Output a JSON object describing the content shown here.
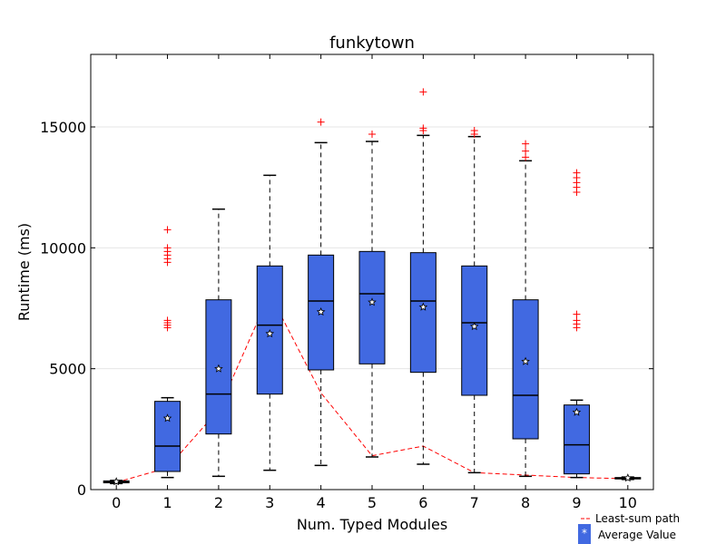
{
  "chart_data": {
    "type": "box",
    "title": "funkytown",
    "xlabel": "Num. Typed Modules",
    "ylabel": "Runtime (ms)",
    "xlim": [
      -0.5,
      10.5
    ],
    "ylim": [
      0,
      18000
    ],
    "yticks": [
      0,
      5000,
      10000,
      15000
    ],
    "ytick_labels": [
      "0",
      "5000",
      "10000",
      "15000"
    ],
    "grid": "horizontal",
    "colors": {
      "box": "#4169e1",
      "outlier": "#ff0000",
      "path": "#ff0000"
    },
    "boxes": [
      {
        "x": 0,
        "label": "0",
        "whislo": 250,
        "q1": 280,
        "med": 320,
        "q3": 360,
        "whishi": 380,
        "mean": 330,
        "outliers": []
      },
      {
        "x": 1,
        "label": "1",
        "whislo": 500,
        "q1": 750,
        "med": 1800,
        "q3": 3650,
        "whishi": 3800,
        "mean": 2950,
        "outliers": [
          6700,
          6800,
          6900,
          7000,
          9400,
          9550,
          9700,
          9850,
          10000,
          10750
        ]
      },
      {
        "x": 2,
        "label": "2",
        "whislo": 550,
        "q1": 2300,
        "med": 3950,
        "q3": 7850,
        "whishi": 11600,
        "mean": 5000,
        "outliers": []
      },
      {
        "x": 3,
        "label": "3",
        "whislo": 800,
        "q1": 3950,
        "med": 6800,
        "q3": 9250,
        "whishi": 13000,
        "mean": 6450,
        "outliers": []
      },
      {
        "x": 4,
        "label": "4",
        "whislo": 1000,
        "q1": 4950,
        "med": 7800,
        "q3": 9700,
        "whishi": 14350,
        "mean": 7350,
        "outliers": [
          15200
        ]
      },
      {
        "x": 5,
        "label": "5",
        "whislo": 1350,
        "q1": 5200,
        "med": 8100,
        "q3": 9850,
        "whishi": 14400,
        "mean": 7750,
        "outliers": [
          14700
        ]
      },
      {
        "x": 6,
        "label": "6",
        "whislo": 1050,
        "q1": 4850,
        "med": 7800,
        "q3": 9800,
        "whishi": 14650,
        "mean": 7550,
        "outliers": [
          14850,
          14950,
          16450
        ]
      },
      {
        "x": 7,
        "label": "7",
        "whislo": 700,
        "q1": 3900,
        "med": 6900,
        "q3": 9250,
        "whishi": 14600,
        "mean": 6750,
        "outliers": [
          14700,
          14850
        ]
      },
      {
        "x": 8,
        "label": "8",
        "whislo": 550,
        "q1": 2100,
        "med": 3900,
        "q3": 7850,
        "whishi": 13600,
        "mean": 5300,
        "outliers": [
          13750,
          14000,
          14300
        ]
      },
      {
        "x": 9,
        "label": "9",
        "whislo": 500,
        "q1": 650,
        "med": 1850,
        "q3": 3500,
        "whishi": 3700,
        "mean": 3200,
        "outliers": [
          6700,
          6850,
          7000,
          7250,
          12300,
          12500,
          12700,
          12900,
          13100
        ]
      },
      {
        "x": 10,
        "label": "10",
        "whislo": 420,
        "q1": 440,
        "med": 470,
        "q3": 500,
        "whishi": 520,
        "mean": 480,
        "outliers": []
      }
    ],
    "least_sum_path": {
      "x": [
        0,
        1,
        2,
        3,
        4,
        5,
        6,
        7,
        8,
        9,
        10
      ],
      "y": [
        300,
        900,
        3300,
        8100,
        4000,
        1400,
        1800,
        700,
        600,
        500,
        450
      ]
    },
    "legend": {
      "placement": "bottom-right",
      "entries": [
        "Least-sum path",
        "Average Value"
      ],
      "marker_glyph": "*"
    }
  }
}
